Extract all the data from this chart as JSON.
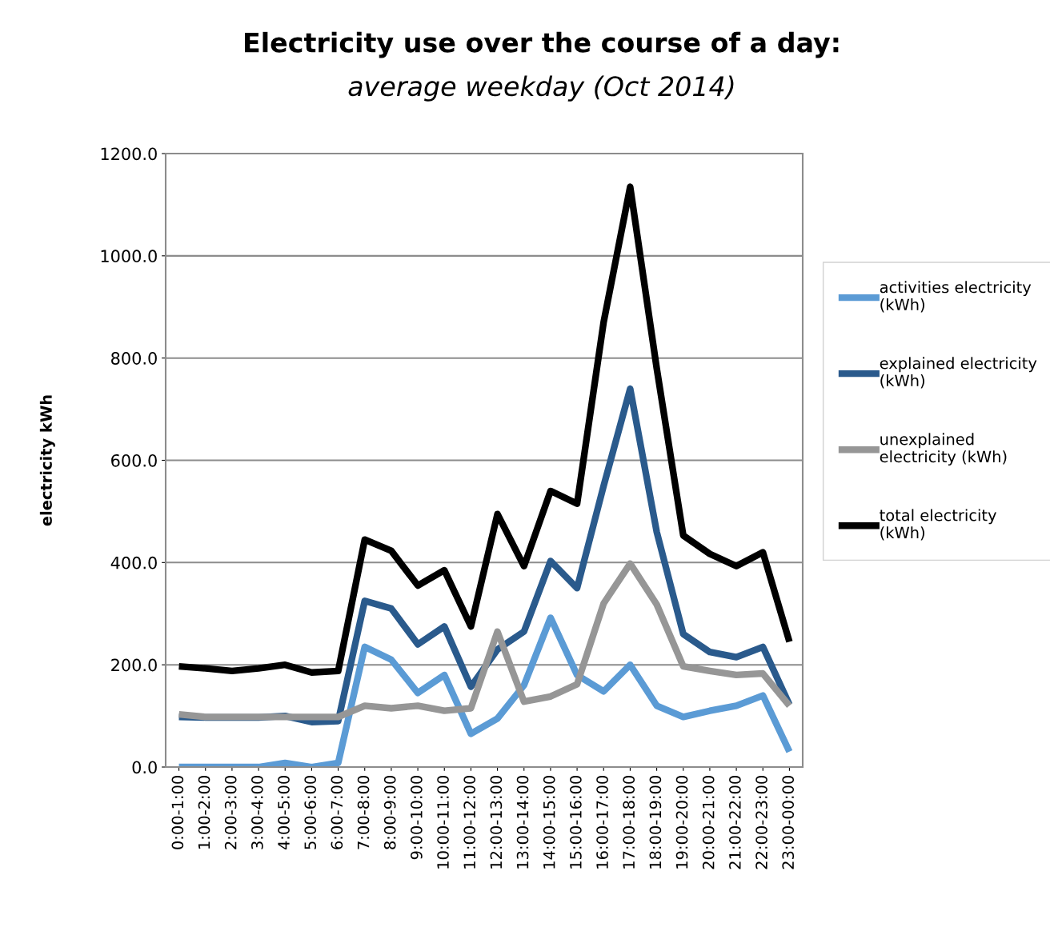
{
  "chart_data": {
    "type": "line",
    "title": "Electricity use over the course of a day:",
    "subtitle": "average weekday (Oct 2014)",
    "ylabel": "electricity kWh",
    "categories": [
      "0:00-1:00",
      "1:00-2:00",
      "2:00-3:00",
      "3:00-4:00",
      "4:00-5:00",
      "5:00-6:00",
      "6:00-7:00",
      "7:00-8:00",
      "8:00-9:00",
      "9:00-10:00",
      "10:00-11:00",
      "11:00-12:00",
      "12:00-13:00",
      "13:00-14:00",
      "14:00-15:00",
      "15:00-16:00",
      "16:00-17:00",
      "17:00-18:00",
      "18:00-19:00",
      "19:00-20:00",
      "20:00-21:00",
      "21:00-22:00",
      "22:00-23:00",
      "23:00-00:00"
    ],
    "series": [
      {
        "name": "activities electricity (kWh)",
        "color": "#5b9bd5",
        "values": [
          0,
          0,
          0,
          0,
          8,
          0,
          8,
          235,
          210,
          145,
          180,
          65,
          95,
          160,
          292,
          180,
          148,
          200,
          120,
          98,
          110,
          120,
          140,
          30
        ]
      },
      {
        "name": "explained electricity (kWh)",
        "color": "#2a5a8c",
        "values": [
          98,
          97,
          97,
          97,
          100,
          88,
          90,
          325,
          310,
          240,
          275,
          157,
          230,
          265,
          403,
          350,
          550,
          740,
          460,
          260,
          225,
          215,
          235,
          122
        ]
      },
      {
        "name": "unexplained electricity (kWh)",
        "color": "#969696",
        "values": [
          103,
          98,
          98,
          98,
          98,
          98,
          98,
          120,
          115,
          120,
          110,
          115,
          265,
          128,
          138,
          162,
          320,
          398,
          318,
          197,
          188,
          180,
          183,
          120
        ]
      },
      {
        "name": "total electricity (kWh)",
        "color": "#000000",
        "values": [
          197,
          193,
          188,
          193,
          200,
          185,
          188,
          445,
          423,
          355,
          385,
          275,
          495,
          393,
          540,
          515,
          870,
          1135,
          780,
          453,
          417,
          393,
          420,
          245
        ]
      }
    ],
    "ylim": [
      0,
      1200
    ],
    "yticks": [
      {
        "value": 0,
        "label": "0.0"
      },
      {
        "value": 200,
        "label": "200.0"
      },
      {
        "value": 400,
        "label": "400.0"
      },
      {
        "value": 600,
        "label": "600.0"
      },
      {
        "value": 800,
        "label": "800.0"
      },
      {
        "value": 1000,
        "label": "1000.0"
      },
      {
        "value": 1200,
        "label": "1200.0"
      }
    ],
    "grid": "y",
    "legend": "right",
    "marker": "none",
    "line_style": "solid"
  }
}
